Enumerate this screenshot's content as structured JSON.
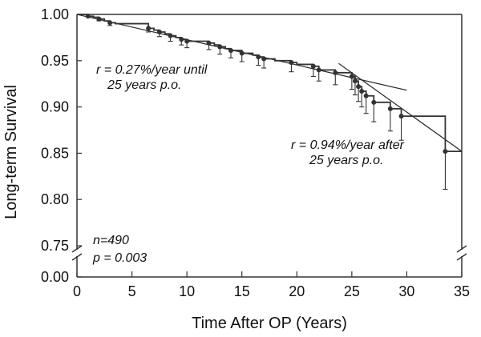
{
  "chart_data": {
    "type": "line",
    "xlabel": "Time After OP (Years)",
    "ylabel": "Long-term Survival",
    "xlim": [
      0,
      35
    ],
    "x_ticks": [
      "0",
      "5",
      "10",
      "15",
      "20",
      "25",
      "30",
      "35"
    ],
    "y_ticks_upper": [
      "0.75",
      "0.80",
      "0.85",
      "0.90",
      "0.95",
      "1.00"
    ],
    "y_tick_lower": "0.00",
    "ylim_upper": [
      0.75,
      1.0
    ],
    "axis_break": true,
    "grid": false,
    "legend": "none",
    "series": [
      {
        "kind": "kaplan-meier step",
        "x": [
          0,
          1,
          1.5,
          2,
          2.5,
          3,
          3.5,
          6.5,
          7,
          7.5,
          8,
          8.5,
          9,
          9.5,
          10,
          12,
          12.5,
          13,
          13.5,
          14,
          15,
          16,
          16.5,
          17,
          18,
          19.5,
          20,
          21.5,
          22,
          23.5,
          25,
          25.3,
          25.6,
          25.9,
          26.3,
          27,
          28.5,
          29.5,
          33.5,
          35
        ],
        "y": [
          1.0,
          0.998,
          0.997,
          0.995,
          0.993,
          0.991,
          0.99,
          0.985,
          0.983,
          0.981,
          0.979,
          0.977,
          0.975,
          0.973,
          0.971,
          0.969,
          0.967,
          0.965,
          0.963,
          0.961,
          0.958,
          0.956,
          0.954,
          0.952,
          0.95,
          0.948,
          0.946,
          0.944,
          0.94,
          0.937,
          0.933,
          0.928,
          0.922,
          0.917,
          0.912,
          0.905,
          0.898,
          0.89,
          0.852,
          0.852
        ]
      }
    ],
    "censored_points": [
      {
        "x": 1,
        "y": 0.998,
        "err": 0.0
      },
      {
        "x": 2,
        "y": 0.995,
        "err": 0.002
      },
      {
        "x": 3,
        "y": 0.991,
        "err": 0.003
      },
      {
        "x": 6.5,
        "y": 0.985,
        "err": 0.004
      },
      {
        "x": 7.5,
        "y": 0.981,
        "err": 0.005
      },
      {
        "x": 8.5,
        "y": 0.977,
        "err": 0.006
      },
      {
        "x": 9.5,
        "y": 0.973,
        "err": 0.006
      },
      {
        "x": 10,
        "y": 0.971,
        "err": 0.007
      },
      {
        "x": 12,
        "y": 0.969,
        "err": 0.007
      },
      {
        "x": 13,
        "y": 0.965,
        "err": 0.008
      },
      {
        "x": 14,
        "y": 0.961,
        "err": 0.008
      },
      {
        "x": 15,
        "y": 0.958,
        "err": 0.009
      },
      {
        "x": 16.5,
        "y": 0.954,
        "err": 0.009
      },
      {
        "x": 17,
        "y": 0.952,
        "err": 0.01
      },
      {
        "x": 19.5,
        "y": 0.948,
        "err": 0.01
      },
      {
        "x": 21.5,
        "y": 0.944,
        "err": 0.011
      },
      {
        "x": 22,
        "y": 0.94,
        "err": 0.012
      },
      {
        "x": 23.5,
        "y": 0.937,
        "err": 0.013
      },
      {
        "x": 25,
        "y": 0.933,
        "err": 0.014
      },
      {
        "x": 25.3,
        "y": 0.928,
        "err": 0.015
      },
      {
        "x": 25.6,
        "y": 0.922,
        "err": 0.016
      },
      {
        "x": 25.9,
        "y": 0.917,
        "err": 0.017
      },
      {
        "x": 26.3,
        "y": 0.912,
        "err": 0.019
      },
      {
        "x": 27,
        "y": 0.905,
        "err": 0.021
      },
      {
        "x": 28.5,
        "y": 0.898,
        "err": 0.024
      },
      {
        "x": 29.5,
        "y": 0.89,
        "err": 0.026
      },
      {
        "x": 33.5,
        "y": 0.852,
        "err": 0.041
      }
    ],
    "trend_lines": [
      {
        "name": "r = 0.27%/year until 25 years p.o.",
        "x": [
          0,
          30
        ],
        "y": [
          1.0,
          0.918
        ]
      },
      {
        "name": "r = 0.94%/year after 25 years p.o.",
        "x": [
          23.8,
          35
        ],
        "y": [
          0.947,
          0.852
        ]
      }
    ],
    "annotations": [
      {
        "lines": [
          "r = 0.27%/year until",
          "25 years p.o."
        ]
      },
      {
        "lines": [
          "r = 0.94%/year after",
          "25 years p.o."
        ]
      },
      {
        "lines": [
          "n=490",
          "p = 0.003"
        ]
      }
    ],
    "colors": {
      "ink": "#333333",
      "text": "#111111",
      "background": "#ffffff"
    }
  }
}
